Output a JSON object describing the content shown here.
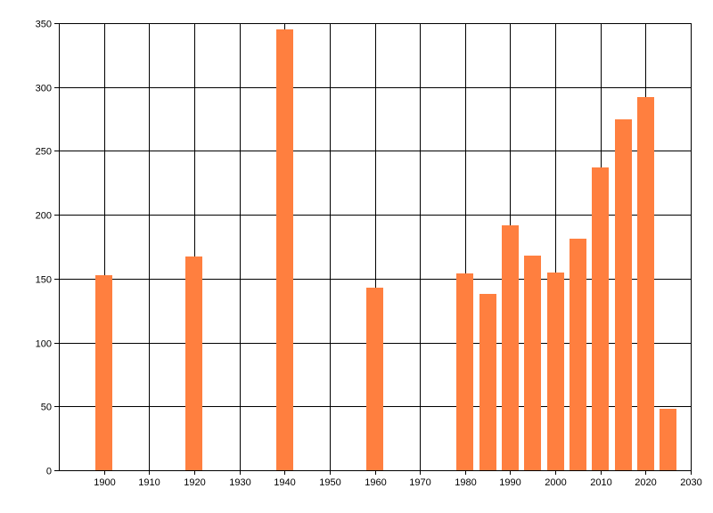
{
  "chart_data": {
    "type": "bar",
    "title": "",
    "xlabel": "",
    "ylabel": "",
    "x": [
      1900,
      1920,
      1940,
      1960,
      1980,
      1985,
      1990,
      1995,
      2000,
      2005,
      2010,
      2015,
      2020,
      2025
    ],
    "values": [
      153,
      167,
      345,
      143,
      154,
      138,
      192,
      168,
      155,
      181,
      237,
      275,
      292,
      48
    ],
    "xlim": [
      1890,
      2030
    ],
    "ylim": [
      0,
      350
    ],
    "xticks": [
      1900,
      1910,
      1920,
      1930,
      1940,
      1950,
      1960,
      1970,
      1980,
      1990,
      2000,
      2010,
      2020,
      2030
    ],
    "yticks": [
      0,
      50,
      100,
      150,
      200,
      250,
      300,
      350
    ],
    "grid": true,
    "bar_color": "#ff7f3f"
  }
}
